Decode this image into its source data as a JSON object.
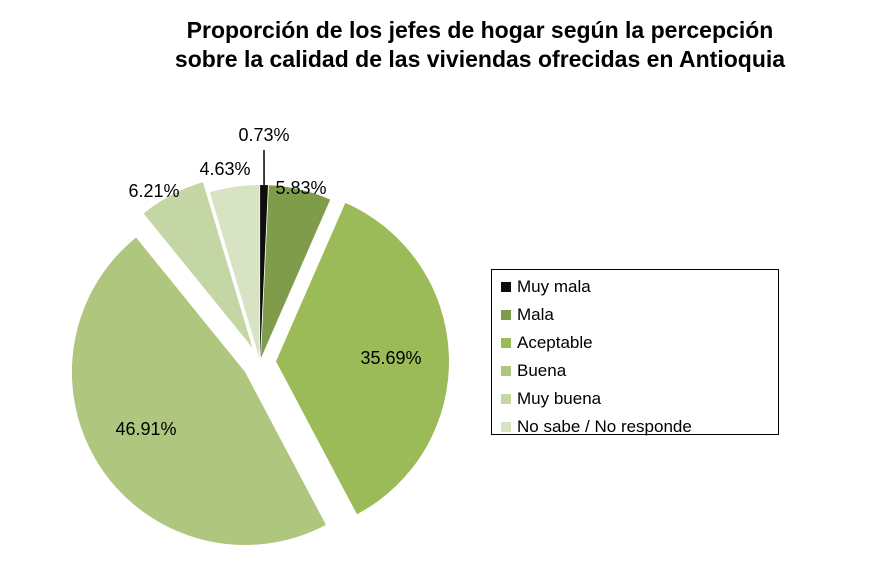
{
  "title_lines": [
    "Proporción de los jefes de hogar según la percepción",
    "sobre la calidad de las viviendas ofrecidas en Antioquia"
  ],
  "chart_data": {
    "type": "pie",
    "title": "Proporción de los jefes de hogar según la percepción sobre la calidad de las viviendas ofrecidas en Antioquia",
    "legend_position": "right",
    "slices": [
      {
        "name": "Muy mala",
        "value": 0.73,
        "label": "0.73%",
        "color": "#0d0d0d"
      },
      {
        "name": "Mala",
        "value": 5.83,
        "label": "5.83%",
        "color": "#7f9c4a"
      },
      {
        "name": "Aceptable",
        "value": 35.69,
        "label": "35.69%",
        "color": "#9bbb59"
      },
      {
        "name": "Buena",
        "value": 46.91,
        "label": "46.91%",
        "color": "#afc67f"
      },
      {
        "name": "Muy buena",
        "value": 6.21,
        "label": "6.21%",
        "color": "#c4d6a4"
      },
      {
        "name": "No sabe / No responde",
        "value": 4.63,
        "label": "4.63%",
        "color": "#d7e3c3"
      }
    ]
  }
}
